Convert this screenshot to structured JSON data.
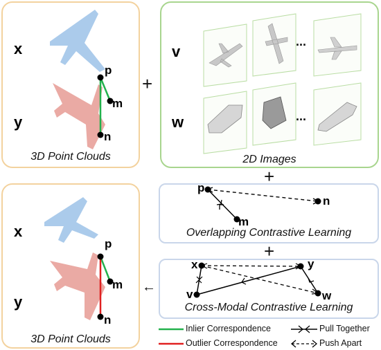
{
  "panels": {
    "top_left": {
      "x_label": "x",
      "y_label": "y",
      "caption": "3D Point Clouds",
      "p": "p",
      "m": "m",
      "n": "n"
    },
    "top_right": {
      "v_label": "v",
      "w_label": "w",
      "caption": "2D Images",
      "ellipsis": "..."
    },
    "overlap": {
      "caption": "Overlapping Contrastive Learning",
      "p": "p",
      "m": "m",
      "n": "n"
    },
    "cross": {
      "caption": "Cross-Modal Contrastive Learning",
      "x": "x",
      "y": "y",
      "v": "v",
      "w": "w"
    },
    "bottom_left": {
      "x_label": "x",
      "y_label": "y",
      "caption": "3D Point Clouds",
      "p": "p",
      "m": "m",
      "n": "n"
    }
  },
  "operators": {
    "plus": "+",
    "arrow": "←"
  },
  "legend": {
    "inlier": "Inlier Correspondence",
    "outlier": "Outlier Correspondence",
    "pull": "Pull Together",
    "push": "Push Apart"
  },
  "colors": {
    "orange_border": "#f3d29e",
    "green_border": "#a8d58e",
    "blue_border": "#c9d6ea",
    "blue_cloud": "#9cc2e8",
    "red_cloud": "#e69b94",
    "inlier": "#22b14c",
    "outlier": "#e02020"
  }
}
